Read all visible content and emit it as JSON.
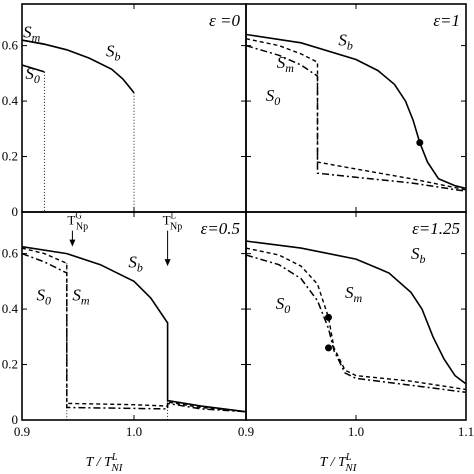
{
  "figure": {
    "xlabel": "T / T",
    "xlabel_sup": "L",
    "xlabel_sub": "NI"
  },
  "chart_data": [
    {
      "type": "line",
      "panel": "top-left",
      "title": "ε =0",
      "xlim": [
        0.9,
        1.1
      ],
      "ylim": [
        0,
        0.75
      ],
      "yticks": [
        "0",
        "0.2",
        "0.4",
        "0.6"
      ],
      "xticks": [],
      "series": [
        {
          "name": "Sb",
          "style": "solid",
          "points": [
            [
              0.9,
              0.62
            ],
            [
              0.92,
              0.605
            ],
            [
              0.94,
              0.585
            ],
            [
              0.96,
              0.555
            ],
            [
              0.98,
              0.515
            ],
            [
              0.99,
              0.48
            ],
            [
              1.0,
              0.43
            ]
          ]
        },
        {
          "name": "Sm",
          "style": "solid",
          "points": [
            [
              0.9,
              0.62
            ],
            [
              0.92,
              0.605
            ]
          ]
        },
        {
          "name": "S0",
          "style": "solid",
          "points": [
            [
              0.9,
              0.53
            ],
            [
              0.92,
              0.505
            ]
          ]
        },
        {
          "name": "",
          "style": "dotted",
          "points": [
            [
              0.92,
              0.505
            ],
            [
              0.92,
              0.0
            ]
          ]
        },
        {
          "name": "",
          "style": "dotted",
          "points": [
            [
              1.0,
              0.43
            ],
            [
              1.0,
              0.0
            ]
          ]
        }
      ],
      "curve_labels": [
        {
          "text": "S",
          "sub": "m",
          "x": 0.901,
          "y": 0.63
        },
        {
          "text": "S",
          "sub": "b",
          "x": 0.975,
          "y": 0.56
        },
        {
          "text": "S",
          "sub": "0",
          "x": 0.903,
          "y": 0.48
        }
      ],
      "markers": [],
      "arrows": []
    },
    {
      "type": "line",
      "panel": "top-right",
      "title": "ε=1",
      "xlim": [
        0.9,
        1.1
      ],
      "ylim": [
        0,
        0.75
      ],
      "yticks": [],
      "xticks": [],
      "series": [
        {
          "name": "Sb",
          "style": "solid",
          "points": [
            [
              0.9,
              0.64
            ],
            [
              0.95,
              0.61
            ],
            [
              1.0,
              0.55
            ],
            [
              1.02,
              0.51
            ],
            [
              1.035,
              0.46
            ],
            [
              1.045,
              0.4
            ],
            [
              1.052,
              0.33
            ],
            [
              1.058,
              0.25
            ],
            [
              1.065,
              0.18
            ],
            [
              1.075,
              0.12
            ],
            [
              1.09,
              0.095
            ],
            [
              1.1,
              0.085
            ]
          ]
        },
        {
          "name": "Sm",
          "style": "dashed",
          "points": [
            [
              0.9,
              0.625
            ],
            [
              0.93,
              0.6
            ],
            [
              0.95,
              0.57
            ],
            [
              0.965,
              0.54
            ],
            [
              0.965,
              0.18
            ],
            [
              1.0,
              0.155
            ],
            [
              1.05,
              0.12
            ],
            [
              1.1,
              0.08
            ]
          ]
        },
        {
          "name": "S0",
          "style": "dashdot",
          "points": [
            [
              0.9,
              0.6
            ],
            [
              0.93,
              0.565
            ],
            [
              0.95,
              0.53
            ],
            [
              0.965,
              0.49
            ],
            [
              0.965,
              0.14
            ],
            [
              1.0,
              0.125
            ],
            [
              1.05,
              0.105
            ],
            [
              1.1,
              0.075
            ]
          ]
        }
      ],
      "curve_labels": [
        {
          "text": "S",
          "sub": "b",
          "x": 0.984,
          "y": 0.6
        },
        {
          "text": "S",
          "sub": "m",
          "x": 0.928,
          "y": 0.52
        },
        {
          "text": "S",
          "sub": "0",
          "x": 0.918,
          "y": 0.4
        }
      ],
      "markers": [
        {
          "x": 1.058,
          "y": 0.25
        }
      ],
      "arrows": []
    },
    {
      "type": "line",
      "panel": "bottom-left",
      "title": "ε=0.5",
      "xlim": [
        0.9,
        1.1
      ],
      "ylim": [
        0,
        0.75
      ],
      "yticks": [
        "0",
        "0.2",
        "0.4",
        "0.6"
      ],
      "xticks": [
        "0.9",
        "1.0"
      ],
      "series": [
        {
          "name": "Sb",
          "style": "solid",
          "points": [
            [
              0.9,
              0.625
            ],
            [
              0.94,
              0.6
            ],
            [
              0.97,
              0.56
            ],
            [
              1.0,
              0.5
            ],
            [
              1.015,
              0.44
            ],
            [
              1.03,
              0.35
            ],
            [
              1.03,
              0.07
            ],
            [
              1.06,
              0.05
            ],
            [
              1.1,
              0.03
            ]
          ]
        },
        {
          "name": "Sm",
          "style": "dashed",
          "points": [
            [
              0.9,
              0.62
            ],
            [
              0.92,
              0.6
            ],
            [
              0.94,
              0.565
            ],
            [
              0.94,
              0.06
            ],
            [
              1.0,
              0.055
            ],
            [
              1.03,
              0.05
            ],
            [
              1.03,
              0.065
            ],
            [
              1.06,
              0.045
            ],
            [
              1.1,
              0.03
            ]
          ]
        },
        {
          "name": "S0",
          "style": "dashdot",
          "points": [
            [
              0.9,
              0.6
            ],
            [
              0.92,
              0.57
            ],
            [
              0.94,
              0.53
            ],
            [
              0.94,
              0.045
            ],
            [
              1.0,
              0.042
            ],
            [
              1.03,
              0.04
            ],
            [
              1.03,
              0.06
            ],
            [
              1.06,
              0.04
            ],
            [
              1.1,
              0.03
            ]
          ]
        },
        {
          "name": "",
          "style": "dotted",
          "points": [
            [
              0.94,
              0.565
            ],
            [
              0.94,
              0.0
            ]
          ]
        },
        {
          "name": "",
          "style": "dotted",
          "points": [
            [
              1.03,
              0.35
            ],
            [
              1.03,
              0.0
            ]
          ]
        }
      ],
      "curve_labels": [
        {
          "text": "S",
          "sub": "b",
          "x": 0.995,
          "y": 0.55
        },
        {
          "text": "S",
          "sub": "m",
          "x": 0.945,
          "y": 0.43
        },
        {
          "text": "S",
          "sub": "0",
          "x": 0.913,
          "y": 0.43
        }
      ],
      "markers": [],
      "arrows": [
        {
          "text": "T",
          "sup": "G",
          "sub": "Np",
          "x": 0.945,
          "y_top": 0.69,
          "y_tip": 0.625
        },
        {
          "text": "T",
          "sup": "L",
          "sub": "Np",
          "x": 1.03,
          "y_top": 0.69,
          "y_tip": 0.555
        }
      ]
    },
    {
      "type": "line",
      "panel": "bottom-right",
      "title": "ε=1.25",
      "xlim": [
        0.9,
        1.1
      ],
      "ylim": [
        0,
        0.75
      ],
      "yticks": [],
      "xticks": [
        "0.9",
        "1.0",
        "1.1"
      ],
      "series": [
        {
          "name": "Sb",
          "style": "solid",
          "points": [
            [
              0.9,
              0.645
            ],
            [
              0.95,
              0.62
            ],
            [
              1.0,
              0.58
            ],
            [
              1.03,
              0.53
            ],
            [
              1.05,
              0.46
            ],
            [
              1.06,
              0.4
            ],
            [
              1.07,
              0.3
            ],
            [
              1.08,
              0.22
            ],
            [
              1.09,
              0.16
            ],
            [
              1.1,
              0.13
            ]
          ]
        },
        {
          "name": "Sm",
          "style": "dashed",
          "points": [
            [
              0.9,
              0.62
            ],
            [
              0.93,
              0.595
            ],
            [
              0.95,
              0.555
            ],
            [
              0.965,
              0.49
            ],
            [
              0.975,
              0.37
            ],
            [
              0.98,
              0.26
            ],
            [
              0.99,
              0.18
            ],
            [
              1.0,
              0.16
            ],
            [
              1.05,
              0.14
            ],
            [
              1.1,
              0.11
            ]
          ]
        },
        {
          "name": "S0",
          "style": "dashdot",
          "points": [
            [
              0.9,
              0.595
            ],
            [
              0.93,
              0.56
            ],
            [
              0.95,
              0.51
            ],
            [
              0.965,
              0.43
            ],
            [
              0.975,
              0.33
            ],
            [
              0.98,
              0.25
            ],
            [
              0.99,
              0.17
            ],
            [
              1.0,
              0.15
            ],
            [
              1.05,
              0.125
            ],
            [
              1.1,
              0.1
            ]
          ]
        }
      ],
      "curve_labels": [
        {
          "text": "S",
          "sub": "b",
          "x": 1.05,
          "y": 0.58
        },
        {
          "text": "S",
          "sub": "m",
          "x": 0.99,
          "y": 0.44
        },
        {
          "text": "S",
          "sub": "0",
          "x": 0.927,
          "y": 0.4
        }
      ],
      "markers": [
        {
          "x": 0.975,
          "y": 0.37
        },
        {
          "x": 0.975,
          "y": 0.26
        }
      ],
      "arrows": []
    }
  ]
}
